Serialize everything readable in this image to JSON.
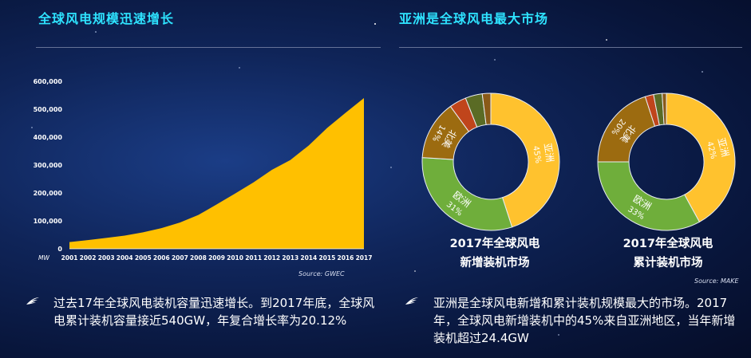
{
  "left": {
    "title": "全球风电规模迅速增长",
    "source": "Source: GWEC",
    "bullet": "过去17年全球风电装机容量迅速增长。到2017年底，全球风电累计装机容量接近540GW，年复合增长率为20.12%"
  },
  "right": {
    "title": "亚洲是全球风电最大市场",
    "source": "Source: MAKE",
    "bullet": "亚洲是全球风电新增和累计装机规模最大的市场。2017年，全球风电新增装机中的45%来自亚洲地区，当年新增装机超过24.4GW",
    "donut1_caption": [
      "2017年全球风电",
      "新增装机市场"
    ],
    "donut2_caption": [
      "2017年全球风电",
      "累计装机市场"
    ]
  },
  "colors": {
    "title": "#2ee3ff",
    "area": "#ffc000",
    "asia": "#ffc22e",
    "europe": "#6fae3b",
    "north_america": "#9c6b10",
    "other1": "#c0451b",
    "other2": "#5a6b25",
    "other3": "#8a5a18"
  },
  "chart_data": [
    {
      "type": "area",
      "ylabel_unit": "MW",
      "x": [
        "2001",
        "2002",
        "2003",
        "2004",
        "2005",
        "2006",
        "2007",
        "2008",
        "2009",
        "2010",
        "2011",
        "2012",
        "2013",
        "2014",
        "2015",
        "2016",
        "2017"
      ],
      "values": [
        24000,
        31000,
        39000,
        47000,
        59000,
        74000,
        94000,
        121000,
        159000,
        198000,
        238000,
        283000,
        318000,
        370000,
        433000,
        487000,
        540000
      ],
      "ylim": [
        0,
        600000
      ],
      "yticks": [
        "0",
        "100,000",
        "200,000",
        "300,000",
        "400,000",
        "500,000",
        "600,000"
      ]
    },
    {
      "type": "pie",
      "title": "2017年全球风电新增装机市场",
      "slices": [
        {
          "name": "亚洲",
          "value": 45,
          "label": "45%"
        },
        {
          "name": "欧洲",
          "value": 31,
          "label": "31%"
        },
        {
          "name": "北美",
          "value": 14,
          "label": "14%"
        },
        {
          "name": "",
          "value": 4
        },
        {
          "name": "",
          "value": 4
        },
        {
          "name": "",
          "value": 2
        }
      ]
    },
    {
      "type": "pie",
      "title": "2017年全球风电累计装机市场",
      "slices": [
        {
          "name": "亚洲",
          "value": 42,
          "label": "42%"
        },
        {
          "name": "欧洲",
          "value": 33,
          "label": "33%"
        },
        {
          "name": "北美",
          "value": 20,
          "label": "20%"
        },
        {
          "name": "",
          "value": 2
        },
        {
          "name": "",
          "value": 2
        },
        {
          "name": "",
          "value": 1
        }
      ]
    }
  ]
}
